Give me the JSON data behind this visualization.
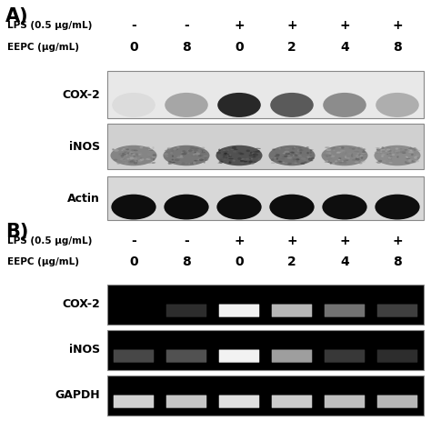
{
  "panel_A_label": "A)",
  "panel_B_label": "B)",
  "lps_label": "LPS (0.5 μg/mL)",
  "eepc_label": "EEPC (μg/mL)",
  "lps_values": [
    "-",
    "-",
    "+",
    "+",
    "+",
    "+"
  ],
  "eepc_values": [
    "0",
    "8",
    "0",
    "2",
    "4",
    "8"
  ],
  "panel_A_rows": [
    "COX-2",
    "iNOS",
    "Actin"
  ],
  "panel_B_rows": [
    "COX-2",
    "iNOS",
    "GAPDH"
  ],
  "bg_color": "#ffffff",
  "figsize": [
    4.74,
    4.74
  ],
  "dpi": 100,
  "A_cox2_intensities": [
    0.05,
    0.32,
    0.95,
    0.7,
    0.45,
    0.28
  ],
  "A_inos_intensities": [
    0.5,
    0.6,
    0.88,
    0.65,
    0.5,
    0.45
  ],
  "A_actin_intensities": [
    0.88,
    0.92,
    0.9,
    0.88,
    0.86,
    0.84
  ],
  "B_cox2_intensities": [
    0.0,
    0.18,
    0.95,
    0.72,
    0.45,
    0.25
  ],
  "B_inos_intensities": [
    0.28,
    0.32,
    0.95,
    0.62,
    0.22,
    0.18
  ],
  "B_gapdh_intensities": [
    0.82,
    0.78,
    0.88,
    0.8,
    0.75,
    0.72
  ]
}
